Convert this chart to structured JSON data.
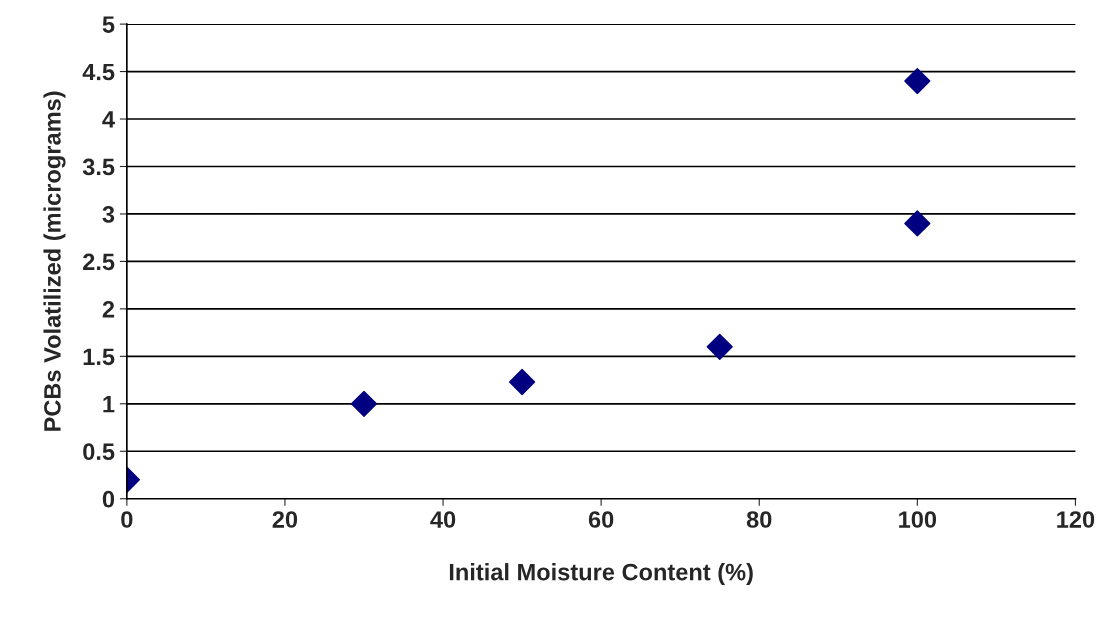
{
  "chart_data": {
    "type": "scatter",
    "xlabel": "Initial Moisture Content (%)",
    "ylabel": "PCBs Volatilized (micrograms)",
    "x": [
      0,
      30,
      50,
      75,
      100,
      100
    ],
    "values": [
      0.2,
      1.0,
      1.23,
      1.6,
      2.9,
      4.4
    ],
    "color": "#000080",
    "marker": "diamond",
    "grid": "y",
    "legend": false,
    "xlim": [
      0,
      120
    ],
    "xticks": [
      0,
      20,
      40,
      60,
      80,
      100,
      120
    ],
    "ylim": [
      0,
      5
    ],
    "yticks": [
      0,
      0.5,
      1,
      1.5,
      2,
      2.5,
      3,
      3.5,
      4,
      4.5,
      5
    ]
  }
}
